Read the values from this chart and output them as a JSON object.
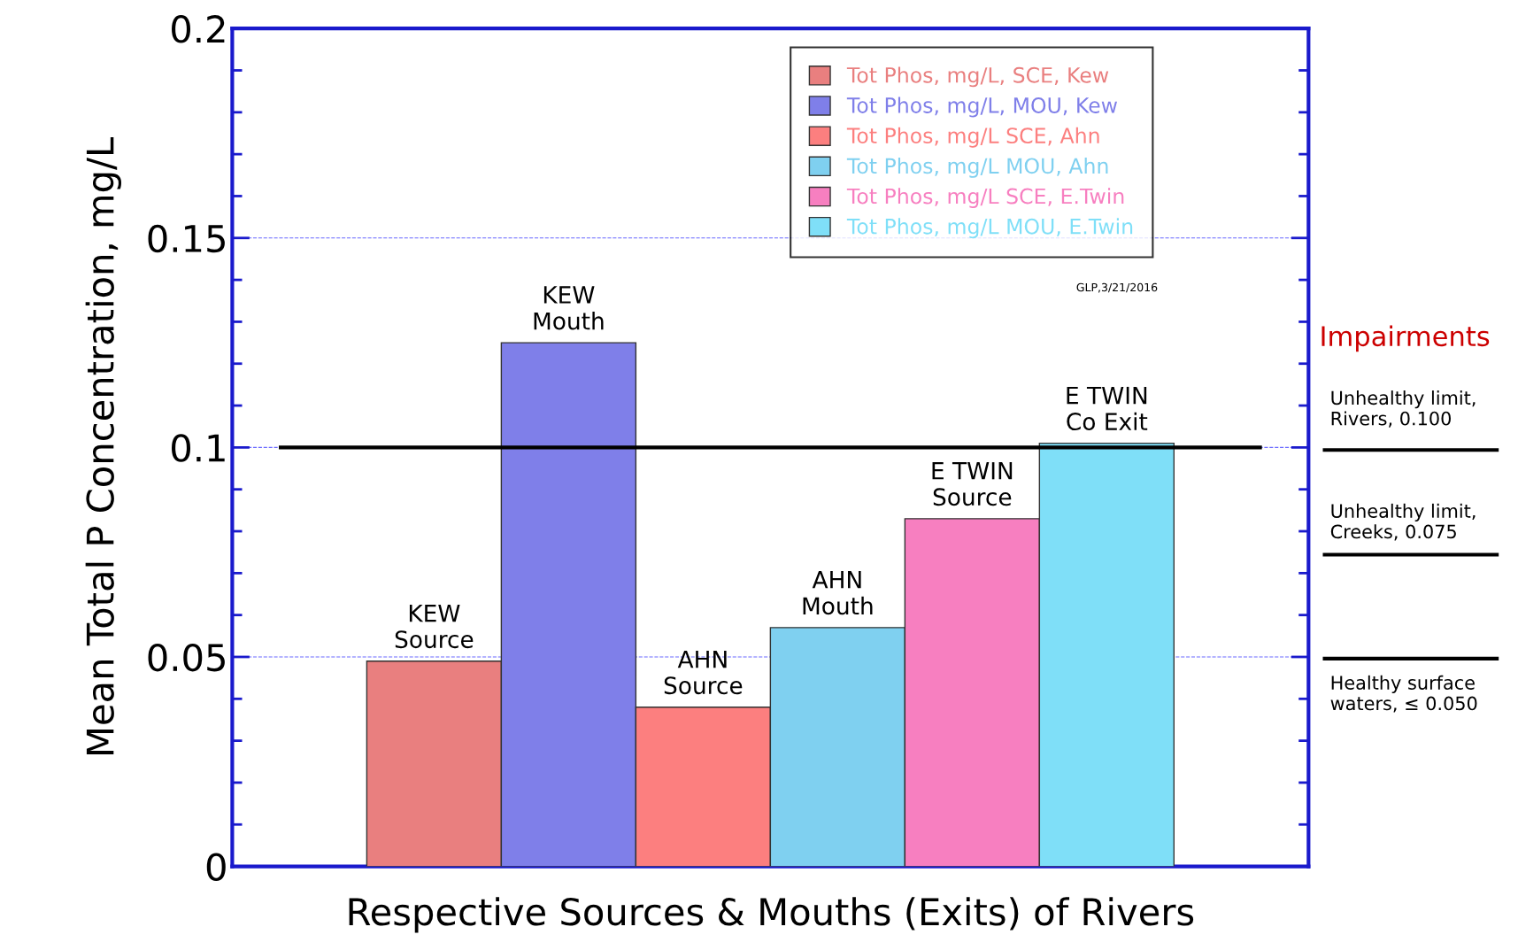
{
  "chart_data": {
    "type": "bar",
    "ylabel": "Mean Total P Concentration, mg/L",
    "xlabel": "Respective Sources & Mouths (Exits) of Rivers",
    "categories": [
      null,
      "KEW\nSource",
      "KEW\nMouth",
      "AHN\nSource",
      "AHN\nMouth",
      "E TWIN\nSource",
      "E TWIN\nCo Exit",
      null
    ],
    "series": [
      {
        "name": "Tot Phos, mg/L, SCE, Kew",
        "color": "#e97f7f",
        "values": [
          null,
          0.049,
          null,
          null,
          null,
          null,
          null,
          null
        ]
      },
      {
        "name": "Tot Phos, mg/L, MOU, Kew",
        "color": "#7f7fe9",
        "values": [
          null,
          null,
          0.125,
          null,
          null,
          null,
          null,
          null
        ]
      },
      {
        "name": "Tot Phos, mg/L SCE, Ahn",
        "color": "#fc7f7f",
        "values": [
          null,
          null,
          null,
          0.038,
          null,
          null,
          null,
          null
        ]
      },
      {
        "name": "Tot Phos, mg/L MOU, Ahn",
        "color": "#7fd0f0",
        "values": [
          null,
          null,
          null,
          null,
          0.057,
          null,
          null,
          null
        ]
      },
      {
        "name": "Tot Phos, mg/L SCE, E.Twin",
        "color": "#f77fc0",
        "values": [
          null,
          null,
          null,
          null,
          null,
          0.083,
          null,
          null
        ]
      },
      {
        "name": "Tot Phos, mg/L MOU, E.Twin",
        "color": "#7fdff8",
        "values": [
          null,
          null,
          null,
          null,
          null,
          null,
          0.101,
          null
        ]
      }
    ],
    "ylim": [
      0,
      0.2
    ],
    "yticks": [
      0,
      0.05,
      0.1,
      0.15,
      0.2
    ],
    "grid": "y",
    "legend": "top right",
    "tick_labels": "y",
    "ref_lines": [
      {
        "axis": "y",
        "value": 0.1,
        "color": "#000000"
      }
    ],
    "annotations": [
      "Impairments",
      "Unhealthy limit,\nRivers, 0.100",
      "Unhealthy limit,\nCreeks, 0.075",
      "Healthy surface\nwaters, ≤ 0.050",
      "GLP,3/21/2016"
    ]
  }
}
